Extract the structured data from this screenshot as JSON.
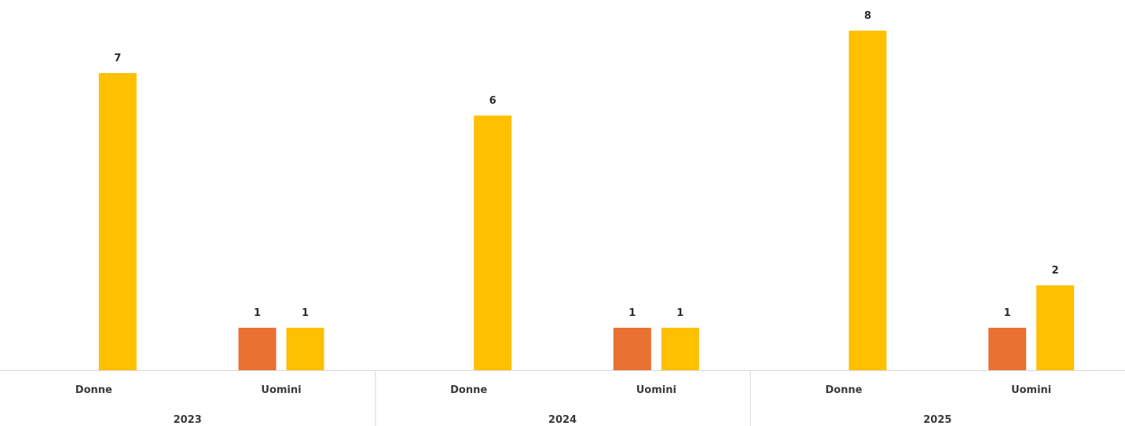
{
  "chart_data": {
    "type": "bar",
    "title": "",
    "xlabel": "",
    "ylabel": "",
    "ylim": [
      0,
      8
    ],
    "grid": false,
    "legend": "none",
    "groups": [
      {
        "label": "2023",
        "categories": [
          {
            "label": "Donne",
            "bars": [
              {
                "series": 1,
                "value": 7
              }
            ]
          },
          {
            "label": "Uomini",
            "bars": [
              {
                "series": 0,
                "value": 1
              },
              {
                "series": 1,
                "value": 1
              }
            ]
          }
        ]
      },
      {
        "label": "2024",
        "categories": [
          {
            "label": "Donne",
            "bars": [
              {
                "series": 1,
                "value": 6
              }
            ]
          },
          {
            "label": "Uomini",
            "bars": [
              {
                "series": 0,
                "value": 1
              },
              {
                "series": 1,
                "value": 1
              }
            ]
          }
        ]
      },
      {
        "label": "2025",
        "categories": [
          {
            "label": "Donne",
            "bars": [
              {
                "series": 1,
                "value": 8
              }
            ]
          },
          {
            "label": "Uomini",
            "bars": [
              {
                "series": 0,
                "value": 1
              },
              {
                "series": 1,
                "value": 2
              }
            ]
          }
        ]
      }
    ],
    "series": [
      {
        "color": "#E97132"
      },
      {
        "color": "#FFC000"
      }
    ],
    "axis_color": "#d9d9d9",
    "text_color": "#3a3a3a"
  }
}
